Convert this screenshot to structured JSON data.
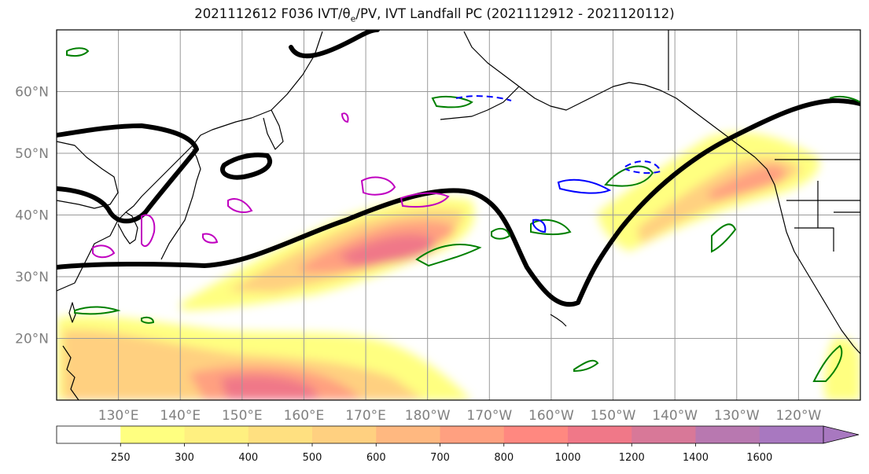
{
  "title": {
    "prefix": "2021112612 F036 IVT/θ",
    "sub": "e",
    "suffix": "/PV, IVT Landfall PC (2021112912 - 2021120112)"
  },
  "map": {
    "lon_min": 120,
    "lon_max": 250,
    "lat_min": 10,
    "lat_max": 70,
    "lat_ticks": [
      {
        "value": 20,
        "label": "20°N"
      },
      {
        "value": 30,
        "label": "30°N"
      },
      {
        "value": 40,
        "label": "40°N"
      },
      {
        "value": 50,
        "label": "50°N"
      },
      {
        "value": 60,
        "label": "60°N"
      }
    ],
    "lon_ticks": [
      {
        "value": 130,
        "label": "130°E"
      },
      {
        "value": 140,
        "label": "140°E"
      },
      {
        "value": 150,
        "label": "150°E"
      },
      {
        "value": 160,
        "label": "160°E"
      },
      {
        "value": 170,
        "label": "170°E"
      },
      {
        "value": 180,
        "label": "180°W"
      },
      {
        "value": 190,
        "label": "170°W"
      },
      {
        "value": 200,
        "label": "160°W"
      },
      {
        "value": 210,
        "label": "150°W"
      },
      {
        "value": 220,
        "label": "140°W"
      },
      {
        "value": 230,
        "label": "130°W"
      },
      {
        "value": 240,
        "label": "120°W"
      }
    ],
    "grid": true
  },
  "colorbar": {
    "levels": [
      "250",
      "300",
      "400",
      "500",
      "600",
      "700",
      "800",
      "1000",
      "1200",
      "1400",
      "1600"
    ],
    "colors": [
      "#ffffff",
      "#ffff80",
      "#fff080",
      "#ffe080",
      "#ffd080",
      "#ffb880",
      "#ffa080",
      "#ff8880",
      "#f07888",
      "#d87898",
      "#b878b0",
      "#a878c0"
    ],
    "extend": "max"
  },
  "colors": {
    "jet_contour": "#000000",
    "theta_e": "#008000",
    "pv_positive": "#c000c0",
    "pv_negative": "#0000ff",
    "coastline": "#000000"
  }
}
